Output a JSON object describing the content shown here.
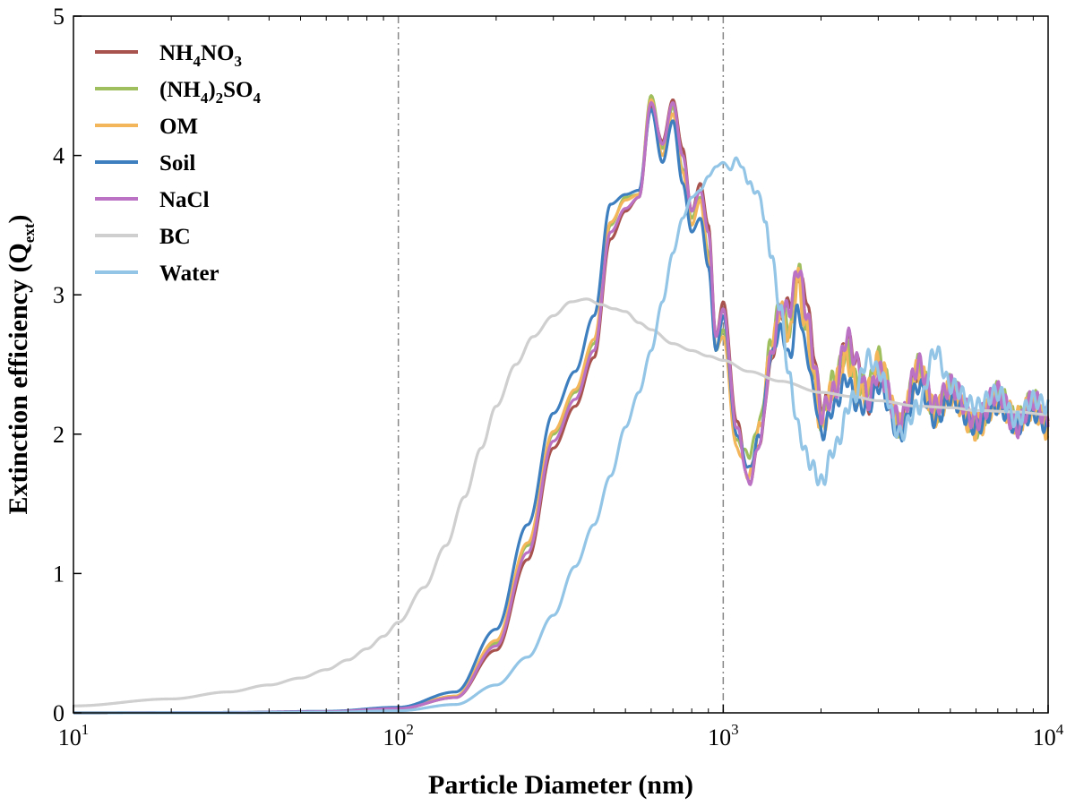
{
  "chart_data": {
    "type": "line",
    "title": "",
    "xlabel": "Particle Diameter (nm)",
    "ylabel_main": "Extinction efficiency (Q",
    "ylabel_sub": "ext",
    "ylabel_end": ")",
    "x_scale": "log",
    "xlim": [
      10,
      10000
    ],
    "ylim": [
      0,
      5
    ],
    "x_ticks": [
      {
        "value": 10,
        "base": "10",
        "exp": "1"
      },
      {
        "value": 100,
        "base": "10",
        "exp": "2"
      },
      {
        "value": 1000,
        "base": "10",
        "exp": "3"
      },
      {
        "value": 10000,
        "base": "10",
        "exp": "4"
      }
    ],
    "y_ticks": [
      "0",
      "1",
      "2",
      "3",
      "4",
      "5"
    ],
    "reference_lines_x": [
      100,
      1000
    ],
    "grid": false,
    "legend_position": "top-left",
    "series": [
      {
        "name_parts": [
          [
            "NH",
            "n"
          ],
          [
            "4",
            "sub"
          ],
          [
            "NO",
            "n"
          ],
          [
            "3",
            "sub"
          ]
        ],
        "color": "#a8534e",
        "x": [
          10,
          30,
          60,
          100,
          150,
          200,
          250,
          300,
          350,
          400,
          450,
          500,
          550,
          600,
          650,
          700,
          750,
          800,
          850,
          900,
          950,
          1000,
          1100,
          1200,
          1300,
          1400,
          1500,
          1600,
          1700,
          1800,
          1900,
          2000,
          2200,
          2400,
          2600,
          2800,
          3000,
          3500,
          4000,
          4500,
          5000,
          6000,
          7000,
          8000,
          9000,
          10000
        ],
        "y": [
          0.0,
          0.002,
          0.008,
          0.03,
          0.11,
          0.45,
          1.1,
          1.9,
          2.2,
          2.55,
          3.4,
          3.6,
          3.7,
          4.35,
          4.1,
          4.4,
          4.05,
          3.6,
          3.8,
          3.5,
          2.7,
          2.95,
          2.1,
          1.65,
          1.95,
          2.5,
          2.85,
          2.95,
          3.15,
          3.0,
          2.6,
          2.2,
          2.3,
          2.7,
          2.5,
          2.2,
          2.4,
          2.1,
          2.45,
          2.2,
          2.3,
          2.1,
          2.25,
          2.05,
          2.2,
          2.1
        ]
      },
      {
        "name_parts": [
          [
            "(NH",
            "n"
          ],
          [
            "4",
            "sub"
          ],
          [
            ")",
            "n"
          ],
          [
            "2",
            "sub"
          ],
          [
            "SO",
            "n"
          ],
          [
            "4",
            "sub"
          ]
        ],
        "color": "#9fbf5f",
        "x": [
          10,
          30,
          60,
          100,
          150,
          200,
          250,
          300,
          350,
          400,
          450,
          500,
          550,
          600,
          650,
          700,
          750,
          800,
          850,
          900,
          950,
          1000,
          1100,
          1200,
          1300,
          1400,
          1500,
          1600,
          1700,
          1800,
          1900,
          2000,
          2200,
          2400,
          2600,
          2800,
          3000,
          3500,
          4000,
          4500,
          5000,
          6000,
          7000,
          8000,
          9000,
          10000
        ],
        "y": [
          0.0,
          0.002,
          0.009,
          0.033,
          0.12,
          0.5,
          1.2,
          2.0,
          2.3,
          2.65,
          3.5,
          3.7,
          3.72,
          4.43,
          4.05,
          4.35,
          3.9,
          3.55,
          3.7,
          3.3,
          2.6,
          2.75,
          1.95,
          1.85,
          2.1,
          2.65,
          2.95,
          2.75,
          3.2,
          2.8,
          2.45,
          2.1,
          2.4,
          2.6,
          2.35,
          2.35,
          2.55,
          2.05,
          2.5,
          2.15,
          2.35,
          2.05,
          2.3,
          2.1,
          2.25,
          2.05
        ]
      },
      {
        "name_parts": [
          [
            "OM",
            "n"
          ]
        ],
        "color": "#f3b65a",
        "x": [
          10,
          30,
          60,
          100,
          150,
          200,
          250,
          300,
          350,
          400,
          450,
          500,
          550,
          600,
          650,
          700,
          750,
          800,
          850,
          900,
          950,
          1000,
          1100,
          1200,
          1300,
          1400,
          1500,
          1600,
          1700,
          1800,
          1900,
          2000,
          2200,
          2400,
          2600,
          2800,
          3000,
          3500,
          4000,
          4500,
          5000,
          6000,
          7000,
          8000,
          9000,
          10000
        ],
        "y": [
          0.0,
          0.002,
          0.009,
          0.034,
          0.12,
          0.52,
          1.22,
          2.02,
          2.32,
          2.68,
          3.52,
          3.68,
          3.72,
          4.4,
          4.0,
          4.3,
          3.88,
          3.5,
          3.68,
          3.25,
          2.62,
          2.7,
          1.9,
          1.7,
          2.05,
          2.6,
          2.9,
          2.7,
          3.1,
          2.75,
          2.4,
          2.05,
          2.35,
          2.55,
          2.3,
          2.3,
          2.5,
          2.05,
          2.45,
          2.15,
          2.3,
          2.05,
          2.25,
          2.1,
          2.2,
          2.05
        ]
      },
      {
        "name_parts": [
          [
            "Soil",
            "n"
          ]
        ],
        "color": "#3d7fbf",
        "x": [
          10,
          30,
          60,
          100,
          150,
          200,
          250,
          300,
          350,
          400,
          450,
          500,
          550,
          600,
          650,
          700,
          750,
          800,
          850,
          900,
          950,
          1000,
          1100,
          1200,
          1300,
          1400,
          1500,
          1600,
          1700,
          1800,
          1900,
          2000,
          2200,
          2400,
          2600,
          2800,
          3000,
          3500,
          4000,
          4500,
          5000,
          6000,
          7000,
          8000,
          9000,
          10000
        ],
        "y": [
          0.0,
          0.003,
          0.011,
          0.04,
          0.15,
          0.6,
          1.35,
          2.15,
          2.45,
          2.85,
          3.65,
          3.72,
          3.75,
          4.33,
          3.95,
          4.25,
          3.8,
          3.45,
          3.55,
          3.2,
          2.6,
          2.85,
          2.0,
          1.75,
          2.0,
          2.55,
          2.75,
          2.55,
          2.9,
          2.6,
          2.3,
          2.0,
          2.2,
          2.4,
          2.2,
          2.2,
          2.35,
          2.0,
          2.35,
          2.1,
          2.25,
          2.05,
          2.2,
          2.05,
          2.15,
          2.05
        ]
      },
      {
        "name_parts": [
          [
            "NaCl",
            "n"
          ]
        ],
        "color": "#bb72c5",
        "x": [
          10,
          30,
          60,
          100,
          150,
          200,
          250,
          300,
          350,
          400,
          450,
          500,
          550,
          600,
          650,
          700,
          750,
          800,
          850,
          900,
          950,
          1000,
          1100,
          1200,
          1300,
          1400,
          1500,
          1600,
          1700,
          1800,
          1900,
          2000,
          2200,
          2400,
          2600,
          2800,
          3000,
          3500,
          4000,
          4500,
          5000,
          6000,
          7000,
          8000,
          9000,
          10000
        ],
        "y": [
          0.0,
          0.002,
          0.008,
          0.031,
          0.11,
          0.48,
          1.15,
          1.95,
          2.25,
          2.6,
          3.45,
          3.62,
          3.7,
          4.38,
          4.08,
          4.38,
          4.0,
          3.6,
          3.75,
          3.45,
          2.7,
          2.9,
          2.05,
          1.65,
          1.95,
          2.55,
          2.9,
          2.9,
          3.2,
          2.9,
          2.55,
          2.15,
          2.3,
          2.7,
          2.5,
          2.25,
          2.45,
          2.1,
          2.5,
          2.2,
          2.35,
          2.1,
          2.3,
          2.05,
          2.25,
          2.1
        ]
      },
      {
        "name_parts": [
          [
            "BC",
            "n"
          ]
        ],
        "color": "#cfcfcf",
        "x": [
          10,
          20,
          30,
          40,
          50,
          60,
          70,
          80,
          90,
          100,
          120,
          140,
          160,
          180,
          200,
          230,
          260,
          300,
          340,
          380,
          420,
          460,
          500,
          550,
          600,
          700,
          800,
          900,
          1000,
          1200,
          1500,
          2000,
          2500,
          3000,
          4000,
          5000,
          6000,
          8000,
          10000
        ],
        "y": [
          0.05,
          0.1,
          0.15,
          0.2,
          0.25,
          0.31,
          0.38,
          0.46,
          0.55,
          0.65,
          0.9,
          1.2,
          1.55,
          1.9,
          2.2,
          2.5,
          2.7,
          2.85,
          2.95,
          2.97,
          2.93,
          2.9,
          2.88,
          2.8,
          2.75,
          2.65,
          2.6,
          2.56,
          2.53,
          2.45,
          2.38,
          2.3,
          2.27,
          2.24,
          2.2,
          2.19,
          2.17,
          2.16,
          2.14
        ]
      },
      {
        "name_parts": [
          [
            "Water",
            "n"
          ]
        ],
        "color": "#93c5e6",
        "x": [
          10,
          30,
          60,
          100,
          150,
          200,
          250,
          300,
          350,
          400,
          450,
          500,
          550,
          600,
          650,
          700,
          750,
          800,
          850,
          900,
          950,
          1000,
          1050,
          1100,
          1150,
          1200,
          1250,
          1300,
          1350,
          1400,
          1500,
          1600,
          1700,
          1800,
          1900,
          2000,
          2200,
          2500,
          2800,
          3000,
          3500,
          4000,
          4500,
          5000,
          6000,
          7000,
          8000,
          9000,
          10000
        ],
        "y": [
          0.0,
          0.001,
          0.004,
          0.015,
          0.06,
          0.2,
          0.4,
          0.7,
          1.05,
          1.35,
          1.7,
          2.05,
          2.3,
          2.6,
          2.95,
          3.3,
          3.55,
          3.7,
          3.75,
          3.85,
          3.92,
          3.95,
          3.9,
          3.98,
          3.9,
          3.8,
          3.75,
          3.7,
          3.5,
          3.3,
          2.9,
          2.4,
          2.05,
          1.85,
          1.75,
          1.65,
          1.9,
          2.25,
          2.55,
          2.45,
          2.0,
          2.2,
          2.6,
          2.35,
          2.2,
          2.3,
          2.1,
          2.25,
          2.2
        ]
      }
    ]
  }
}
